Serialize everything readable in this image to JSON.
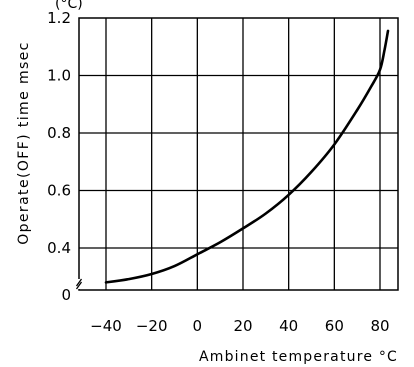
{
  "chart_data": {
    "type": "line",
    "header_fragment": "(°C)",
    "xlabel": "Ambinet temperature °C",
    "ylabel": "Operate(OFF) time msec",
    "x_ticks": [
      "−40",
      "−20",
      "0",
      "20",
      "40",
      "60",
      "80"
    ],
    "y_ticks": [
      "0",
      "0.4",
      "0.6",
      "0.8",
      "1.0",
      "1.2"
    ],
    "xlim": [
      -45,
      85
    ],
    "ylim": [
      0.3,
      1.2
    ],
    "y_axis_break": true,
    "grid": true,
    "series": [
      {
        "points": [
          [
            -40,
            0.318
          ],
          [
            -30,
            0.326
          ],
          [
            -20,
            0.338
          ],
          [
            -10,
            0.357
          ],
          [
            0,
            0.385
          ],
          [
            10,
            0.42
          ],
          [
            20,
            0.468
          ],
          [
            30,
            0.52
          ],
          [
            40,
            0.585
          ],
          [
            50,
            0.665
          ],
          [
            60,
            0.76
          ],
          [
            70,
            0.88
          ],
          [
            76,
            0.96
          ],
          [
            80,
            1.02
          ],
          [
            82,
            1.09
          ],
          [
            83.5,
            1.155
          ]
        ]
      }
    ]
  }
}
